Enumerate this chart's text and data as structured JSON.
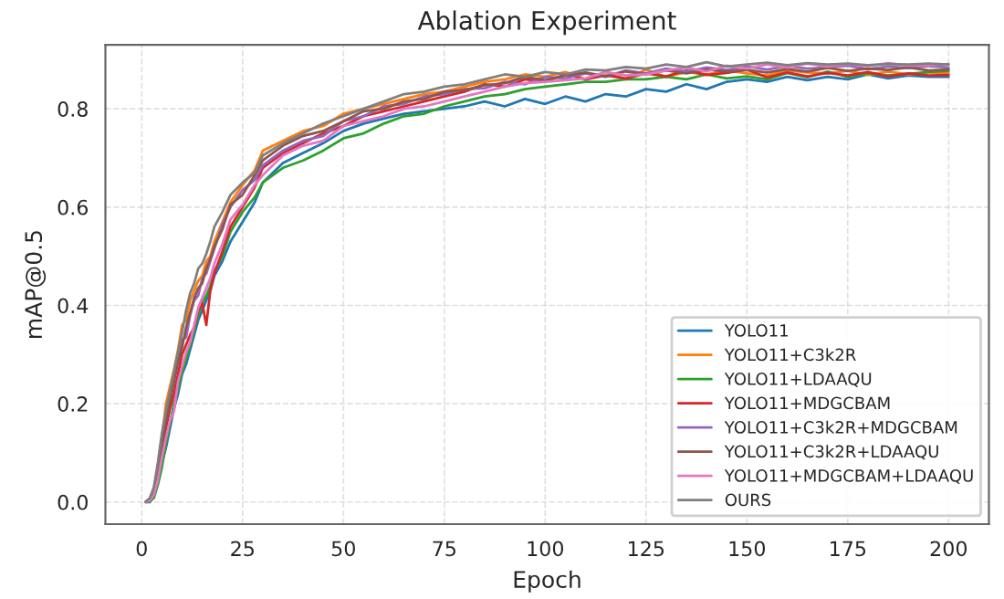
{
  "chart_data": {
    "type": "line",
    "title": "Ablation Experiment",
    "xlabel": "Epoch",
    "ylabel": "mAP@0.5",
    "x": [
      1,
      2,
      3,
      4,
      5,
      6,
      7,
      8,
      9,
      10,
      11,
      12,
      13,
      14,
      15,
      16,
      17,
      18,
      20,
      22,
      25,
      28,
      30,
      35,
      40,
      45,
      50,
      55,
      60,
      65,
      70,
      75,
      80,
      85,
      90,
      95,
      100,
      105,
      110,
      115,
      120,
      125,
      130,
      135,
      140,
      145,
      150,
      155,
      160,
      165,
      170,
      175,
      180,
      185,
      190,
      195,
      200
    ],
    "xlim": [
      -9,
      210
    ],
    "xticks": [
      0,
      25,
      50,
      75,
      100,
      125,
      150,
      175,
      200
    ],
    "ylim": [
      -0.045,
      0.93
    ],
    "yticks": [
      {
        "value": 0,
        "label": "0.0"
      },
      0.2,
      0.4,
      0.6,
      0.8
    ],
    "grid": true,
    "legend": "bottom right",
    "marker": "none",
    "line_style": "solid",
    "series": [
      {
        "name": "YOLO11",
        "color": "#1f77b4",
        "values": [
          0.0,
          0.0,
          0.01,
          0.04,
          0.08,
          0.11,
          0.15,
          0.19,
          0.22,
          0.26,
          0.28,
          0.31,
          0.34,
          0.37,
          0.39,
          0.41,
          0.43,
          0.46,
          0.49,
          0.53,
          0.57,
          0.61,
          0.65,
          0.69,
          0.71,
          0.73,
          0.755,
          0.77,
          0.78,
          0.79,
          0.795,
          0.8,
          0.805,
          0.815,
          0.805,
          0.82,
          0.81,
          0.825,
          0.815,
          0.83,
          0.825,
          0.84,
          0.835,
          0.85,
          0.84,
          0.855,
          0.86,
          0.855,
          0.865,
          0.858,
          0.865,
          0.86,
          0.87,
          0.862,
          0.868,
          0.865,
          0.865
        ]
      },
      {
        "name": "YOLO11+C3k2R",
        "color": "#ff7f0e",
        "values": [
          null,
          null,
          null,
          0.075,
          0.13,
          0.2,
          0.235,
          0.27,
          0.31,
          0.36,
          0.37,
          0.41,
          0.43,
          0.45,
          0.46,
          0.49,
          0.5,
          0.53,
          0.57,
          0.61,
          0.645,
          0.675,
          0.715,
          0.735,
          0.755,
          0.765,
          0.79,
          0.8,
          0.81,
          0.82,
          0.83,
          0.835,
          0.845,
          0.855,
          0.86,
          0.87,
          0.865,
          0.875,
          0.86,
          0.875,
          0.86,
          0.88,
          0.865,
          0.875,
          0.87,
          0.878,
          0.872,
          0.868,
          0.878,
          0.874,
          0.872,
          0.877,
          0.869,
          0.876,
          0.87,
          0.874,
          0.872
        ]
      },
      {
        "name": "YOLO11+LDAAQU",
        "color": "#2ca02c",
        "values": [
          0.0,
          0.002,
          0.008,
          0.035,
          0.07,
          0.12,
          0.16,
          0.2,
          0.23,
          0.265,
          0.29,
          0.32,
          0.35,
          0.38,
          0.405,
          0.42,
          0.44,
          0.47,
          0.5,
          0.55,
          0.59,
          0.62,
          0.65,
          0.68,
          0.695,
          0.715,
          0.74,
          0.75,
          0.77,
          0.785,
          0.79,
          0.805,
          0.815,
          0.825,
          0.83,
          0.84,
          0.845,
          0.85,
          0.855,
          0.855,
          0.86,
          0.86,
          0.865,
          0.86,
          0.87,
          0.862,
          0.866,
          0.86,
          0.873,
          0.864,
          0.876,
          0.865,
          0.872,
          0.868,
          0.871,
          0.875,
          0.877
        ]
      },
      {
        "name": "YOLO11+MDGCBAM",
        "color": "#d62728",
        "values": [
          null,
          null,
          null,
          0.055,
          0.1,
          0.15,
          0.19,
          0.22,
          0.26,
          0.3,
          0.32,
          0.34,
          0.355,
          0.39,
          0.405,
          0.36,
          0.43,
          0.465,
          0.51,
          0.56,
          0.6,
          0.64,
          0.68,
          0.71,
          0.73,
          0.75,
          0.765,
          0.785,
          0.795,
          0.805,
          0.815,
          0.825,
          0.835,
          0.85,
          0.845,
          0.86,
          0.855,
          0.87,
          0.86,
          0.868,
          0.862,
          0.872,
          0.866,
          0.878,
          0.869,
          0.873,
          0.88,
          0.864,
          0.874,
          0.866,
          0.873,
          0.868,
          0.875,
          0.866,
          0.872,
          0.868,
          0.869
        ]
      },
      {
        "name": "YOLO11+C3k2R+MDGCBAM",
        "color": "#9467bd",
        "values": [
          0.0,
          0.006,
          0.025,
          0.07,
          0.125,
          0.175,
          0.215,
          0.25,
          0.3,
          0.33,
          0.335,
          0.38,
          0.41,
          0.42,
          0.455,
          0.465,
          0.49,
          0.515,
          0.565,
          0.6,
          0.635,
          0.655,
          0.685,
          0.715,
          0.735,
          0.745,
          0.775,
          0.785,
          0.805,
          0.81,
          0.825,
          0.83,
          0.84,
          0.842,
          0.855,
          0.85,
          0.865,
          0.862,
          0.872,
          0.865,
          0.878,
          0.872,
          0.882,
          0.876,
          0.884,
          0.879,
          0.886,
          0.88,
          0.887,
          0.882,
          0.884,
          0.888,
          0.881,
          0.886,
          0.883,
          0.887,
          0.884
        ]
      },
      {
        "name": "YOLO11+C3k2R+LDAAQU",
        "color": "#8c564b",
        "values": [
          0.0,
          0.005,
          0.022,
          0.06,
          0.115,
          0.165,
          0.205,
          0.245,
          0.285,
          0.315,
          0.355,
          0.385,
          0.415,
          0.435,
          0.445,
          0.475,
          0.495,
          0.52,
          0.555,
          0.605,
          0.625,
          0.665,
          0.695,
          0.725,
          0.745,
          0.755,
          0.775,
          0.795,
          0.8,
          0.815,
          0.82,
          0.835,
          0.838,
          0.848,
          0.852,
          0.865,
          0.858,
          0.868,
          0.874,
          0.866,
          0.876,
          0.87,
          0.878,
          0.872,
          0.88,
          0.876,
          0.879,
          0.874,
          0.881,
          0.876,
          0.883,
          0.877,
          0.882,
          0.879,
          0.884,
          0.878,
          0.88
        ]
      },
      {
        "name": "YOLO11+MDGCBAM+LDAAQU",
        "color": "#e377c2",
        "values": [
          0.0,
          0.003,
          0.014,
          0.045,
          0.09,
          0.13,
          0.165,
          0.185,
          0.245,
          0.275,
          0.305,
          0.325,
          0.36,
          0.395,
          0.415,
          0.435,
          0.455,
          0.485,
          0.525,
          0.575,
          0.605,
          0.645,
          0.665,
          0.705,
          0.725,
          0.735,
          0.765,
          0.775,
          0.785,
          0.8,
          0.805,
          0.815,
          0.825,
          0.835,
          0.845,
          0.852,
          0.855,
          0.858,
          0.862,
          0.875,
          0.868,
          0.87,
          0.878,
          0.884,
          0.876,
          0.888,
          0.882,
          0.89,
          0.884,
          0.892,
          0.886,
          0.891,
          0.887,
          0.893,
          0.888,
          0.889,
          0.891
        ]
      },
      {
        "name": "OURS",
        "color": "#7f7f7f",
        "values": [
          0.001,
          0.008,
          0.03,
          0.08,
          0.14,
          0.185,
          0.225,
          0.265,
          0.305,
          0.345,
          0.39,
          0.425,
          0.445,
          0.475,
          0.485,
          0.505,
          0.53,
          0.56,
          0.59,
          0.625,
          0.65,
          0.67,
          0.705,
          0.73,
          0.75,
          0.77,
          0.785,
          0.8,
          0.815,
          0.83,
          0.835,
          0.845,
          0.85,
          0.86,
          0.87,
          0.865,
          0.875,
          0.87,
          0.88,
          0.878,
          0.885,
          0.882,
          0.89,
          0.885,
          0.895,
          0.886,
          0.89,
          0.894,
          0.889,
          0.893,
          0.89,
          0.892,
          0.889,
          0.891,
          0.89,
          0.892,
          0.89
        ]
      }
    ]
  }
}
